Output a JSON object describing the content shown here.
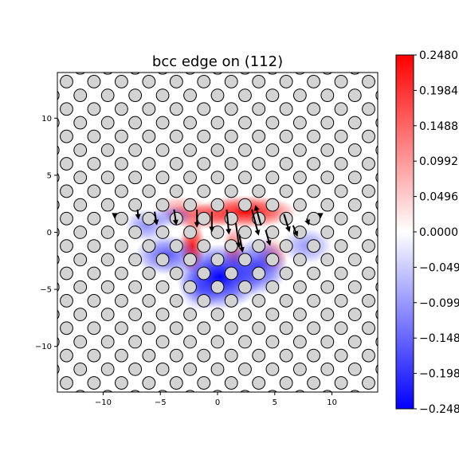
{
  "chart_data": {
    "type": "heatmap",
    "title": "bcc edge on (112)",
    "xlabel": "",
    "ylabel": "",
    "xlim": [
      -14,
      14
    ],
    "ylim": [
      -14,
      14
    ],
    "x_ticks": [
      -10,
      -5,
      0,
      5,
      10
    ],
    "y_ticks": [
      -10,
      -5,
      0,
      5,
      10
    ],
    "grid": false,
    "colormap": "bwr",
    "colorbar": {
      "vmin": -0.248,
      "vmax": 0.248,
      "tick_values": [
        0.248,
        0.1984,
        0.1488,
        0.0992,
        0.0496,
        0.0,
        -0.0496,
        -0.0992,
        -0.1488,
        -0.1984,
        -0.248
      ],
      "tick_labels": [
        "0.2480",
        "0.1984",
        "0.1488",
        "0.0992",
        "0.0496",
        "0.0000",
        "−0.0496",
        "−0.0992",
        "−0.1488",
        "−0.1984",
        "−0.2480"
      ]
    },
    "atoms": {
      "face_color": "#d3d3d3",
      "edge_color": "#000000",
      "lattice_a1": [
        2.4,
        0.0
      ],
      "lattice_a2": [
        1.2,
        1.2
      ],
      "row_offset": 0.6,
      "radius": 0.5
    },
    "field_blobs": [
      {
        "x": 2.5,
        "y": 1.8,
        "sx": 2.8,
        "sy": 0.9,
        "v": 0.24
      },
      {
        "x": -1.5,
        "y": 1.4,
        "sx": 2.0,
        "sy": 0.7,
        "v": 0.16
      },
      {
        "x": -3.2,
        "y": 2.2,
        "sx": 1.6,
        "sy": 0.6,
        "v": 0.09
      },
      {
        "x": -2.2,
        "y": -1.2,
        "sx": 0.7,
        "sy": 1.5,
        "v": 0.22
      },
      {
        "x": 1.4,
        "y": -1.4,
        "sx": 0.6,
        "sy": 1.2,
        "v": 0.15
      },
      {
        "x": 4.8,
        "y": -2.0,
        "sx": 0.9,
        "sy": 1.0,
        "v": 0.1
      },
      {
        "x": 0.2,
        "y": -3.9,
        "sx": 2.4,
        "sy": 1.8,
        "v": -0.248
      },
      {
        "x": 3.6,
        "y": -3.0,
        "sx": 1.6,
        "sy": 1.6,
        "v": -0.18
      },
      {
        "x": -4.4,
        "y": -2.0,
        "sx": 1.8,
        "sy": 1.1,
        "v": -0.16
      },
      {
        "x": -6.2,
        "y": 0.6,
        "sx": 1.2,
        "sy": 0.9,
        "v": -0.11
      },
      {
        "x": -4.0,
        "y": 1.4,
        "sx": 1.2,
        "sy": 0.6,
        "v": -0.1
      },
      {
        "x": 7.8,
        "y": -1.2,
        "sx": 1.4,
        "sy": 1.0,
        "v": -0.1
      },
      {
        "x": -1.5,
        "y": -5.0,
        "sx": 1.2,
        "sy": 1.2,
        "v": -0.09
      }
    ],
    "displacements": [
      {
        "x": -7.0,
        "y": 2.0,
        "dx": 0.1,
        "dy": -0.9
      },
      {
        "x": -5.5,
        "y": 1.8,
        "dx": 0.2,
        "dy": -1.2
      },
      {
        "x": -3.8,
        "y": 2.0,
        "dx": 0.2,
        "dy": -1.4
      },
      {
        "x": -1.8,
        "y": 2.0,
        "dx": 0.0,
        "dy": -1.6
      },
      {
        "x": -0.5,
        "y": 1.8,
        "dx": 0.0,
        "dy": -1.8
      },
      {
        "x": 0.8,
        "y": 2.0,
        "dx": 0.2,
        "dy": -2.2
      },
      {
        "x": 1.6,
        "y": 0.8,
        "dx": 0.3,
        "dy": -2.2
      },
      {
        "x": 1.9,
        "y": -0.2,
        "dx": 0.3,
        "dy": -1.6
      },
      {
        "x": 3.0,
        "y": 2.0,
        "dx": 0.6,
        "dy": -2.3
      },
      {
        "x": 3.8,
        "y": 0.6,
        "dx": -0.5,
        "dy": 1.8
      },
      {
        "x": 4.2,
        "y": 0.2,
        "dx": 0.4,
        "dy": -1.4
      },
      {
        "x": 5.8,
        "y": 1.6,
        "dx": 0.5,
        "dy": -1.6
      },
      {
        "x": 6.6,
        "y": 0.6,
        "dx": 0.4,
        "dy": -1.0
      },
      {
        "x": 7.8,
        "y": 1.2,
        "dx": 0.2,
        "dy": -0.6
      },
      {
        "x": 9.0,
        "y": 1.6,
        "dx": 0.0,
        "dy": -0.4
      },
      {
        "x": -9.0,
        "y": 1.6,
        "dx": 0.0,
        "dy": -0.4
      }
    ]
  }
}
